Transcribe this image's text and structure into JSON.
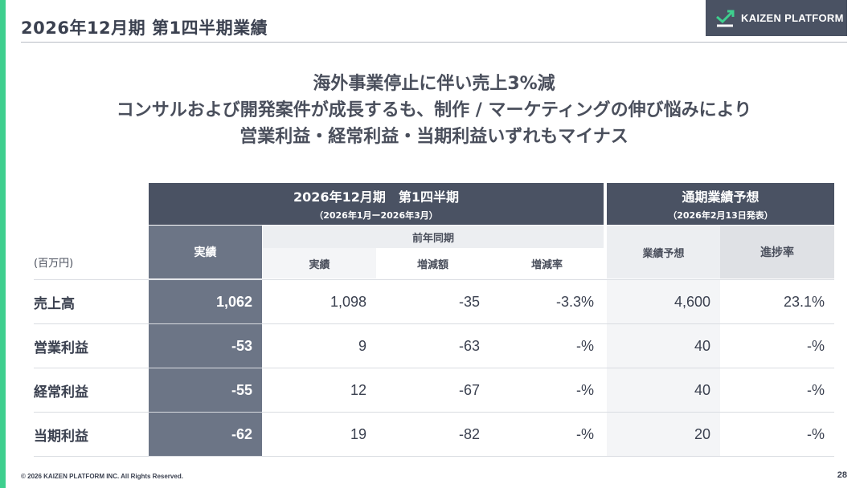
{
  "page": {
    "title": "2026年12月期 第1四半期業績",
    "logo_text": "KAIZEN PLATFORM",
    "headline": [
      "海外事業停止に伴い売上3%減",
      "コンサルおよび開発案件が成長するも、制作 / マーケティングの伸び悩みにより",
      "営業利益・経常利益・当期利益いずれもマイナス"
    ],
    "footer": "© 2026 KAIZEN PLATFORM INC. All Rights Reserved.",
    "page_number": "28"
  },
  "table": {
    "unit": "(百万円)",
    "group_q1": {
      "title": "2026年12月期　第1四半期",
      "subtitle": "（2026年1月ー2026年3月）"
    },
    "group_fc": {
      "title": "通期業績予想",
      "subtitle": "（2026年2月13日発表）"
    },
    "col_actual": "実績",
    "col_prev_group": "前年同期",
    "col_prev_actual": "実績",
    "col_change_amount": "増減額",
    "col_change_rate": "増減率",
    "col_forecast": "業績予想",
    "col_progress": "進捗率",
    "rows": [
      {
        "label": "売上高",
        "actual": "1,062",
        "prev": "1,098",
        "diff": "-35",
        "rate": "-3.3%",
        "forecast": "4,600",
        "progress": "23.1%"
      },
      {
        "label": "営業利益",
        "actual": "-53",
        "prev": "9",
        "diff": "-63",
        "rate": "-%",
        "forecast": "40",
        "progress": "-%"
      },
      {
        "label": "経常利益",
        "actual": "-55",
        "prev": "12",
        "diff": "-67",
        "rate": "-%",
        "forecast": "40",
        "progress": "-%"
      },
      {
        "label": "当期利益",
        "actual": "-62",
        "prev": "19",
        "diff": "-82",
        "rate": "-%",
        "forecast": "20",
        "progress": "-%"
      }
    ]
  },
  "colors": {
    "accent": "#3ecf8e",
    "header_dark": "#4a5263",
    "actual_column": "#6c7586"
  }
}
